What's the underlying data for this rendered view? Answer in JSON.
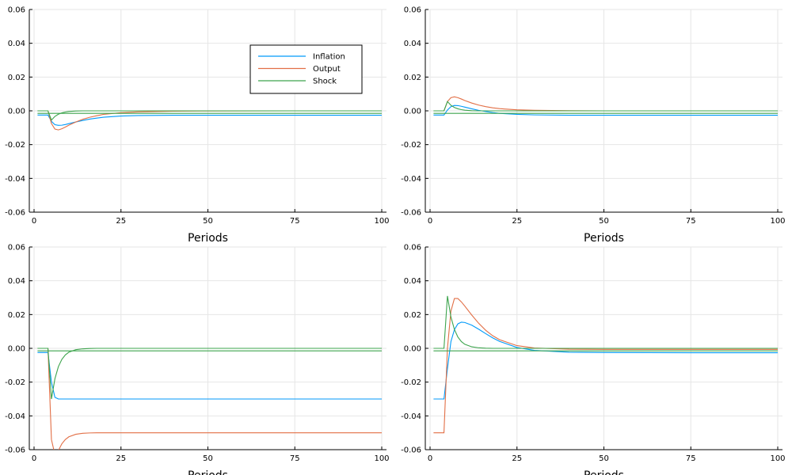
{
  "chart_data": [
    {
      "type": "line",
      "xlabel": "Periods",
      "xlim": [
        0,
        100
      ],
      "ylim": [
        -0.06,
        0.06
      ],
      "xticks": [
        "0",
        "25",
        "50",
        "75",
        "100"
      ],
      "yticks": [
        "-0.06",
        "-0.04",
        "-0.02",
        "0.00",
        "0.02",
        "0.04",
        "0.06"
      ],
      "grid": true,
      "legend": "top-right",
      "series": [
        {
          "name": "Inflation",
          "color": "#009af9",
          "x": [
            1,
            2,
            3,
            4,
            5,
            6,
            7,
            8,
            9,
            10,
            12,
            14,
            16,
            18,
            20,
            25,
            30,
            40,
            50,
            75,
            100
          ],
          "y": [
            -0.0025,
            -0.0025,
            -0.0025,
            -0.0025,
            -0.0062,
            -0.0082,
            -0.0086,
            -0.0085,
            -0.0081,
            -0.0076,
            -0.0066,
            -0.0057,
            -0.0049,
            -0.0043,
            -0.0038,
            -0.0031,
            -0.0028,
            -0.0026,
            -0.0026,
            -0.0026,
            -0.0026
          ]
        },
        {
          "name": "Output",
          "color": "#e26f46",
          "x": [
            1,
            2,
            3,
            4,
            5,
            6,
            7,
            8,
            9,
            10,
            12,
            14,
            16,
            18,
            20,
            25,
            30,
            40,
            50,
            75,
            100
          ],
          "y": [
            0,
            0,
            0,
            0,
            -0.0075,
            -0.0108,
            -0.0113,
            -0.0106,
            -0.0096,
            -0.0085,
            -0.0066,
            -0.005,
            -0.0038,
            -0.0029,
            -0.0021,
            -0.0011,
            -0.0006,
            -0.0002,
            -0.0001,
            0,
            0
          ]
        },
        {
          "name": "Shock",
          "color": "#3da44d",
          "x": [
            1,
            2,
            3,
            4,
            5,
            6,
            7,
            8,
            9,
            10,
            12,
            14,
            16,
            18,
            20,
            25,
            30,
            40,
            50,
            75,
            100
          ],
          "y": [
            0,
            0,
            0,
            0,
            -0.0055,
            -0.0033,
            -0.002,
            -0.0012,
            -0.0007,
            -0.0004,
            -0.0001,
            0,
            0,
            0,
            0,
            0,
            0,
            0,
            0,
            0,
            0
          ]
        },
        {
          "name": "",
          "color": "#3da44d",
          "x": [
            1,
            100
          ],
          "y": [
            -0.0015,
            -0.0015
          ]
        }
      ]
    },
    {
      "type": "line",
      "xlabel": "Periods",
      "xlim": [
        0,
        100
      ],
      "ylim": [
        -0.06,
        0.06
      ],
      "xticks": [
        "0",
        "25",
        "50",
        "75",
        "100"
      ],
      "yticks": [
        "-0.06",
        "-0.04",
        "-0.02",
        "0.00",
        "0.02",
        "0.04",
        "0.06"
      ],
      "grid": true,
      "series": [
        {
          "name": "Inflation",
          "color": "#009af9",
          "x": [
            1,
            2,
            3,
            4,
            5,
            6,
            7,
            8,
            9,
            10,
            12,
            14,
            16,
            18,
            20,
            25,
            30,
            40,
            50,
            75,
            100
          ],
          "y": [
            -0.0025,
            -0.0025,
            -0.0025,
            -0.0025,
            0.0005,
            0.0025,
            0.0032,
            0.0031,
            0.0027,
            0.0022,
            0.0012,
            0.0003,
            -0.0004,
            -0.001,
            -0.0015,
            -0.0021,
            -0.0024,
            -0.0026,
            -0.0026,
            -0.0026,
            -0.0026
          ]
        },
        {
          "name": "Output",
          "color": "#e26f46",
          "x": [
            1,
            2,
            3,
            4,
            5,
            6,
            7,
            8,
            9,
            10,
            12,
            14,
            16,
            18,
            20,
            25,
            30,
            40,
            50,
            75,
            100
          ],
          "y": [
            0,
            0,
            0,
            0,
            0.0055,
            0.0078,
            0.0083,
            0.0078,
            0.007,
            0.0061,
            0.0046,
            0.0034,
            0.0025,
            0.0018,
            0.0013,
            0.0006,
            0.0003,
            0.0001,
            0,
            0,
            0
          ]
        },
        {
          "name": "Shock",
          "color": "#3da44d",
          "x": [
            1,
            2,
            3,
            4,
            5,
            6,
            7,
            8,
            9,
            10,
            12,
            14,
            16,
            18,
            20,
            25,
            30,
            40,
            50,
            75,
            100
          ],
          "y": [
            0,
            0,
            0,
            0,
            0.0055,
            0.0033,
            0.002,
            0.0012,
            0.0007,
            0.0004,
            0.0001,
            0,
            0,
            0,
            0,
            0,
            0,
            0,
            0,
            0,
            0
          ]
        },
        {
          "name": "",
          "color": "#3da44d",
          "x": [
            1,
            100
          ],
          "y": [
            -0.0015,
            -0.0015
          ]
        }
      ]
    },
    {
      "type": "line",
      "xlabel": "Periods",
      "xlim": [
        0,
        100
      ],
      "ylim": [
        -0.06,
        0.06
      ],
      "xticks": [
        "0",
        "25",
        "50",
        "75",
        "100"
      ],
      "yticks": [
        "-0.06",
        "-0.04",
        "-0.02",
        "0.00",
        "0.02",
        "0.04",
        "0.06"
      ],
      "grid": true,
      "series": [
        {
          "name": "Inflation",
          "color": "#009af9",
          "x": [
            1,
            2,
            3,
            4,
            5,
            6,
            7,
            8,
            10,
            15,
            20,
            25,
            50,
            75,
            100
          ],
          "y": [
            -0.0025,
            -0.0025,
            -0.0025,
            -0.0025,
            -0.02,
            -0.029,
            -0.03,
            -0.03,
            -0.03,
            -0.03,
            -0.03,
            -0.03,
            -0.03,
            -0.03,
            -0.03
          ]
        },
        {
          "name": "Output",
          "color": "#e26f46",
          "x": [
            1,
            2,
            3,
            4,
            5,
            6,
            7,
            8,
            9,
            10,
            12,
            14,
            16,
            18,
            20,
            25,
            30,
            40,
            50,
            75,
            100
          ],
          "y": [
            0,
            0,
            0,
            0,
            -0.054,
            -0.063,
            -0.0605,
            -0.0565,
            -0.054,
            -0.0524,
            -0.0509,
            -0.0503,
            -0.0501,
            -0.05,
            -0.05,
            -0.05,
            -0.05,
            -0.05,
            -0.05,
            -0.05,
            -0.05
          ]
        },
        {
          "name": "Shock",
          "color": "#3da44d",
          "x": [
            1,
            2,
            3,
            4,
            5,
            6,
            7,
            8,
            9,
            10,
            12,
            14,
            16,
            18,
            20,
            25,
            30,
            40,
            50,
            75,
            100
          ],
          "y": [
            0,
            0,
            0,
            0,
            -0.03,
            -0.018,
            -0.0108,
            -0.0065,
            -0.0039,
            -0.0023,
            -0.0008,
            -0.0003,
            -0.0001,
            0,
            0,
            0,
            0,
            0,
            0,
            0,
            0
          ]
        },
        {
          "name": "",
          "color": "#3da44d",
          "x": [
            1,
            100
          ],
          "y": [
            -0.0015,
            -0.0015
          ]
        }
      ]
    },
    {
      "type": "line",
      "xlabel": "Periods",
      "xlim": [
        0,
        100
      ],
      "ylim": [
        -0.06,
        0.06
      ],
      "xticks": [
        "0",
        "25",
        "50",
        "75",
        "100"
      ],
      "yticks": [
        "-0.06",
        "-0.04",
        "-0.02",
        "0.00",
        "0.02",
        "0.04",
        "0.06"
      ],
      "grid": true,
      "series": [
        {
          "name": "Inflation",
          "color": "#009af9",
          "x": [
            1,
            2,
            3,
            4,
            5,
            6,
            7,
            8,
            9,
            10,
            12,
            14,
            16,
            18,
            20,
            25,
            30,
            40,
            50,
            75,
            100
          ],
          "y": [
            -0.03,
            -0.03,
            -0.03,
            -0.03,
            -0.012,
            0.004,
            0.011,
            0.0145,
            0.0155,
            0.0153,
            0.0137,
            0.0113,
            0.0087,
            0.0062,
            0.0041,
            0.0005,
            -0.0012,
            -0.0023,
            -0.0025,
            -0.0026,
            -0.0026
          ]
        },
        {
          "name": "Output",
          "color": "#e26f46",
          "x": [
            1,
            2,
            3,
            4,
            5,
            6,
            7,
            8,
            9,
            10,
            12,
            14,
            16,
            18,
            20,
            25,
            30,
            40,
            50,
            75,
            100
          ],
          "y": [
            -0.05,
            -0.05,
            -0.05,
            -0.05,
            0.0,
            0.022,
            0.0295,
            0.0295,
            0.0275,
            0.025,
            0.0197,
            0.0148,
            0.0107,
            0.0075,
            0.0051,
            0.0016,
            0.0002,
            -0.0005,
            -0.0006,
            -0.0006,
            -0.0006
          ]
        },
        {
          "name": "Shock",
          "color": "#3da44d",
          "x": [
            1,
            2,
            3,
            4,
            5,
            6,
            7,
            8,
            9,
            10,
            12,
            14,
            16,
            18,
            20,
            25,
            30,
            40,
            50,
            75,
            100
          ],
          "y": [
            0,
            0,
            0,
            0,
            0.031,
            0.0186,
            0.0112,
            0.0067,
            0.004,
            0.0024,
            0.0009,
            0.0003,
            0.0001,
            0,
            0,
            0,
            0,
            0,
            0,
            0,
            0
          ]
        },
        {
          "name": "",
          "color": "#3da44d",
          "x": [
            1,
            100
          ],
          "y": [
            -0.0015,
            -0.0015
          ]
        }
      ]
    }
  ]
}
